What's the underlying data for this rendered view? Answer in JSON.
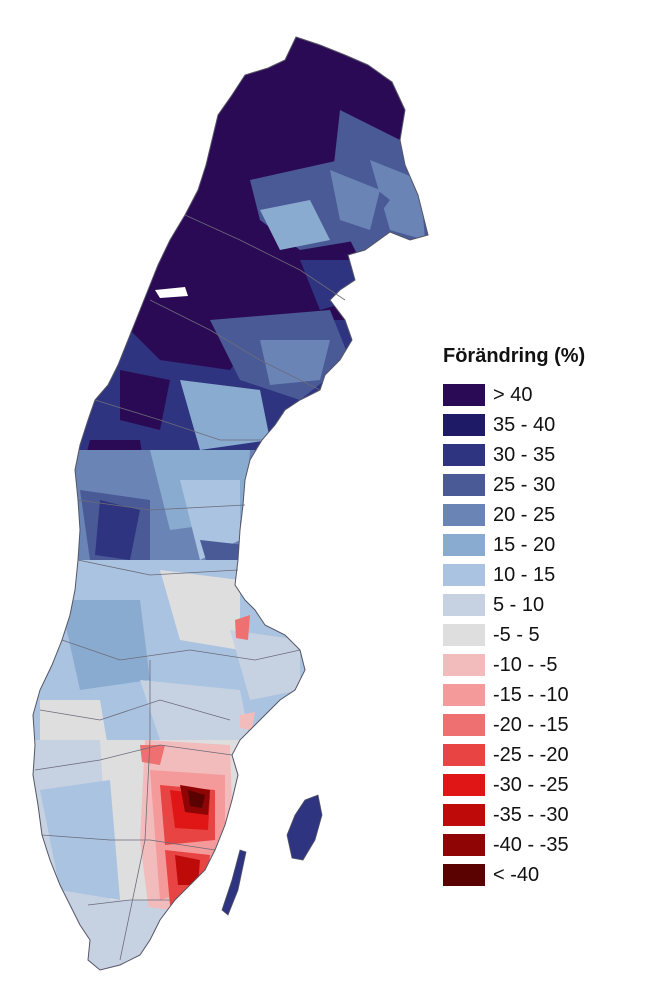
{
  "legend": {
    "title": "Förändring (%)",
    "classes": [
      {
        "label": "> 40",
        "color": "#2b0a55"
      },
      {
        "label": "35 - 40",
        "color": "#1f1a66"
      },
      {
        "label": "30 - 35",
        "color": "#2e3480"
      },
      {
        "label": "25 - 30",
        "color": "#4a5a96"
      },
      {
        "label": "20 - 25",
        "color": "#6a84b6"
      },
      {
        "label": "15 - 20",
        "color": "#8aabd0"
      },
      {
        "label": "10 - 15",
        "color": "#a9c3e0"
      },
      {
        "label": "5 - 10",
        "color": "#c6d2e2"
      },
      {
        "label": "-5 - 5",
        "color": "#dedede"
      },
      {
        "label": "-10 - -5",
        "color": "#f2bcbc"
      },
      {
        "label": "-15 - -10",
        "color": "#f59a9a"
      },
      {
        "label": "-20 - -15",
        "color": "#ef7070"
      },
      {
        "label": "-25 - -20",
        "color": "#e84444"
      },
      {
        "label": "-30 - -25",
        "color": "#e01616"
      },
      {
        "label": "-35 - -30",
        "color": "#bf0a0a"
      },
      {
        "label": "-40 - -35",
        "color": "#8f0404"
      },
      {
        "label": "< -40",
        "color": "#5a0202"
      }
    ]
  }
}
